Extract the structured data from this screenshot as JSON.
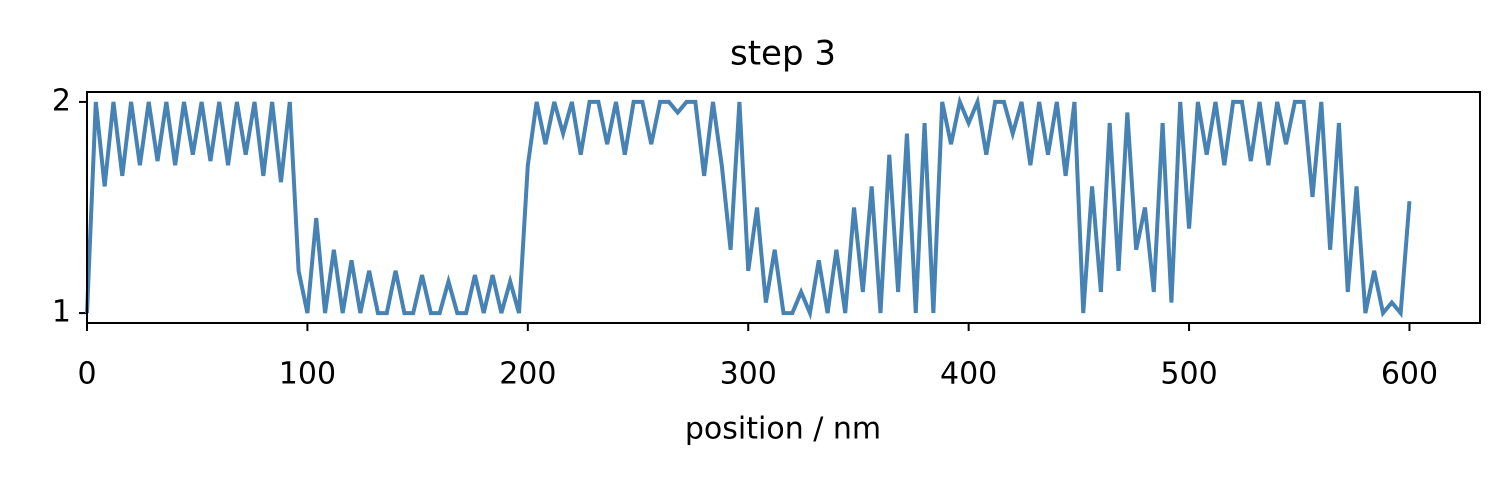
{
  "chart_data": {
    "type": "line",
    "title": "step 3",
    "x_label": "position / nm",
    "x": [
      0,
      4,
      8,
      12,
      16,
      20,
      24,
      28,
      32,
      36,
      40,
      44,
      48,
      52,
      56,
      60,
      64,
      68,
      72,
      76,
      80,
      84,
      88,
      92,
      96,
      100,
      104,
      108,
      112,
      116,
      120,
      124,
      128,
      132,
      136,
      140,
      144,
      148,
      152,
      156,
      160,
      164,
      168,
      172,
      176,
      180,
      184,
      188,
      192,
      196,
      200,
      204,
      208,
      212,
      216,
      220,
      224,
      228,
      232,
      236,
      240,
      244,
      248,
      252,
      256,
      260,
      264,
      268,
      272,
      276,
      280,
      284,
      288,
      292,
      296,
      300,
      304,
      308,
      312,
      316,
      320,
      324,
      328,
      332,
      336,
      340,
      344,
      348,
      352,
      356,
      360,
      364,
      368,
      372,
      376,
      380,
      384,
      388,
      392,
      396,
      400,
      404,
      408,
      412,
      416,
      420,
      424,
      428,
      432,
      436,
      440,
      444,
      448,
      452,
      456,
      460,
      464,
      468,
      472,
      476,
      480,
      484,
      488,
      492,
      496,
      500,
      504,
      508,
      512,
      516,
      520,
      524,
      528,
      532,
      536,
      540,
      544,
      548,
      552,
      556,
      560,
      564,
      568,
      572,
      576,
      580,
      584,
      588,
      592,
      596,
      600
    ],
    "series": [
      {
        "color": "#4682b4",
        "values": [
          1.0,
          2.0,
          1.6,
          2.0,
          1.65,
          2.0,
          1.7,
          2.0,
          1.72,
          2.0,
          1.7,
          2.0,
          1.75,
          2.0,
          1.72,
          2.0,
          1.7,
          2.0,
          1.75,
          2.0,
          1.65,
          2.0,
          1.62,
          2.0,
          1.2,
          1.0,
          1.45,
          1.0,
          1.3,
          1.0,
          1.25,
          1.0,
          1.2,
          1.0,
          1.0,
          1.2,
          1.0,
          1.0,
          1.18,
          1.0,
          1.0,
          1.15,
          1.0,
          1.0,
          1.18,
          1.0,
          1.18,
          1.0,
          1.15,
          1.0,
          1.7,
          2.0,
          1.8,
          2.0,
          1.85,
          2.0,
          1.75,
          2.0,
          2.0,
          1.8,
          2.0,
          1.75,
          2.0,
          2.0,
          1.8,
          2.0,
          2.0,
          1.95,
          2.0,
          2.0,
          1.65,
          2.0,
          1.7,
          1.3,
          2.0,
          1.2,
          1.5,
          1.05,
          1.3,
          1.0,
          1.0,
          1.1,
          1.0,
          1.25,
          1.0,
          1.3,
          1.0,
          1.5,
          1.1,
          1.6,
          1.0,
          1.75,
          1.1,
          1.85,
          1.0,
          1.9,
          1.0,
          2.0,
          1.8,
          2.0,
          1.9,
          2.0,
          1.75,
          2.0,
          2.0,
          1.85,
          2.0,
          1.7,
          2.0,
          1.75,
          2.0,
          1.65,
          2.0,
          1.0,
          1.6,
          1.1,
          1.9,
          1.2,
          1.95,
          1.3,
          1.5,
          1.1,
          1.9,
          1.05,
          2.0,
          1.4,
          2.0,
          1.75,
          2.0,
          1.7,
          2.0,
          2.0,
          1.72,
          2.0,
          1.7,
          2.0,
          1.8,
          2.0,
          2.0,
          1.55,
          2.0,
          1.3,
          1.9,
          1.1,
          1.6,
          1.0,
          1.2,
          1.0,
          1.05,
          1.0,
          1.53
        ]
      }
    ],
    "xlim": [
      0,
      632
    ],
    "ylim": [
      0.953,
      2.047
    ],
    "xticks": [
      0,
      100,
      200,
      300,
      400,
      500,
      600
    ],
    "yticks": [
      1,
      2
    ]
  }
}
